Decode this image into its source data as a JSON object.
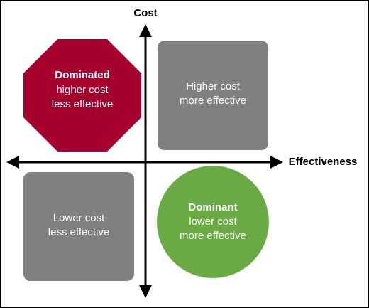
{
  "axes": {
    "y_label": "Cost",
    "x_label": "Effectiveness"
  },
  "quadrants": [
    {
      "title": "Dominated",
      "lines": [
        "higher cost",
        "less effective"
      ]
    },
    {
      "lines": [
        "Higher cost",
        "more effective"
      ]
    },
    {
      "lines": [
        "Lower cost",
        "less effective"
      ]
    },
    {
      "title": "Dominant",
      "lines": [
        "lower cost",
        "more effective"
      ]
    }
  ]
}
